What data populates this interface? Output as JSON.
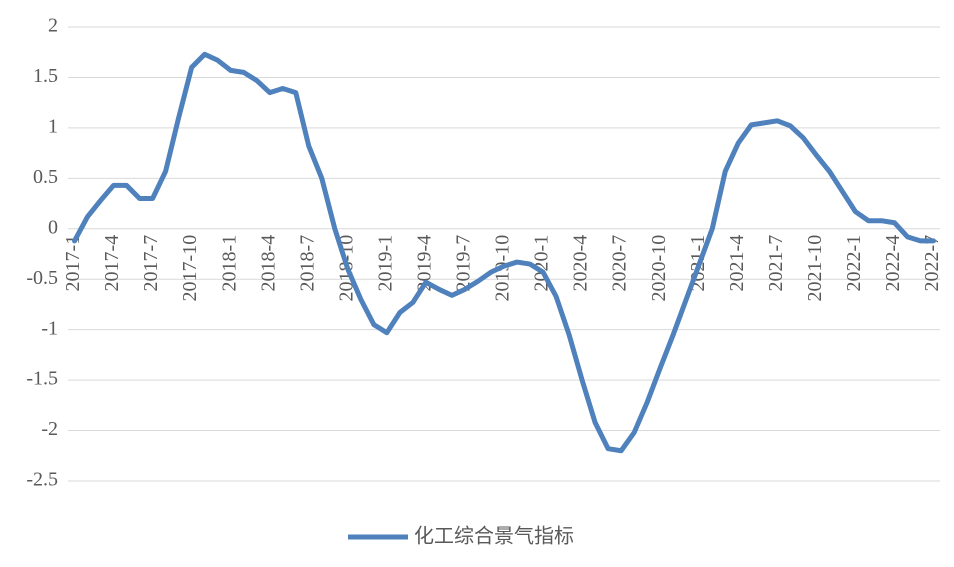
{
  "chart_data": {
    "type": "line",
    "categories": [
      "2017-1",
      null,
      null,
      "2017-4",
      null,
      null,
      "2017-7",
      null,
      null,
      "2017-10",
      null,
      null,
      "2018-1",
      null,
      null,
      "2018-4",
      null,
      null,
      "2018-7",
      null,
      null,
      "2018-10",
      null,
      null,
      "2019-1",
      null,
      null,
      "2019-4",
      null,
      null,
      "2019-7",
      null,
      null,
      "2019-10",
      null,
      null,
      "2020-1",
      null,
      null,
      "2020-4",
      null,
      null,
      "2020-7",
      null,
      null,
      "2020-10",
      null,
      null,
      "2021-1",
      null,
      null,
      "2021-4",
      null,
      null,
      "2021-7",
      null,
      null,
      "2021-10",
      null,
      null,
      "2022-1",
      null,
      null,
      "2022-4",
      null,
      null,
      "2022-7"
    ],
    "series": [
      {
        "name": "化工综合景气指标",
        "color": "#4f81bd",
        "values": [
          -0.12,
          0.12,
          0.28,
          0.43,
          0.43,
          0.3,
          0.3,
          0.57,
          1.1,
          1.6,
          1.73,
          1.67,
          1.57,
          1.55,
          1.47,
          1.35,
          1.39,
          1.35,
          0.82,
          0.5,
          0.0,
          -0.4,
          -0.7,
          -0.95,
          -1.03,
          -0.83,
          -0.73,
          -0.53,
          -0.6,
          -0.66,
          -0.6,
          -0.52,
          -0.43,
          -0.37,
          -0.33,
          -0.35,
          -0.43,
          -0.67,
          -1.05,
          -1.5,
          -1.92,
          -2.18,
          -2.2,
          -2.02,
          -1.72,
          -1.38,
          -1.05,
          -0.7,
          -0.35,
          0.0,
          0.57,
          0.85,
          1.03,
          1.05,
          1.07,
          1.02,
          0.9,
          0.73,
          0.57,
          0.37,
          0.17,
          0.08,
          0.08,
          0.06,
          -0.08,
          -0.12,
          -0.12
        ]
      }
    ],
    "ylim": [
      -2.5,
      2
    ],
    "yticks": [
      -2.5,
      -2,
      -1.5,
      -1,
      -0.5,
      0,
      0.5,
      1,
      1.5,
      2
    ],
    "grid": true,
    "legend": "bottom"
  }
}
